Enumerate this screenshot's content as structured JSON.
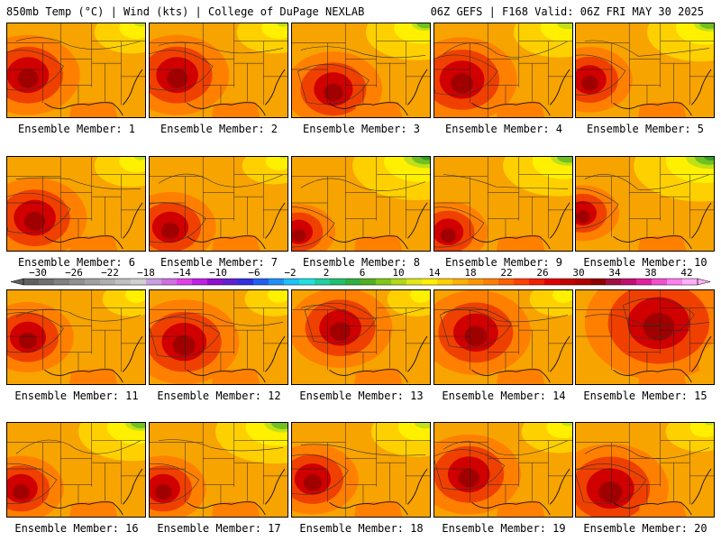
{
  "header": {
    "left": "850mb Temp (°C) | Wind (kts) | College of DuPage NEXLAB",
    "right": "06Z GEFS | F168 Valid: 06Z FRI MAY 30 2025"
  },
  "label_prefix": "Ensemble Member: ",
  "members": [
    1,
    2,
    3,
    4,
    5,
    6,
    7,
    8,
    9,
    10,
    11,
    12,
    13,
    14,
    15,
    16,
    17,
    18,
    19,
    20
  ],
  "colorbar": {
    "ticks": [
      "-30",
      "-26",
      "-22",
      "-18",
      "-14",
      "-10",
      "-6",
      "-2",
      "2",
      "6",
      "10",
      "14",
      "18",
      "22",
      "26",
      "30",
      "34",
      "38",
      "42"
    ],
    "colors": [
      "#606060",
      "#707070",
      "#808080",
      "#909090",
      "#a0a0a0",
      "#b0b0b0",
      "#c0c0c0",
      "#d0d0d0",
      "#c8a0e0",
      "#d070e0",
      "#e040e8",
      "#c020e0",
      "#9010d0",
      "#6020d0",
      "#3030e0",
      "#2060f0",
      "#2090f8",
      "#20c0f8",
      "#20e0e0",
      "#20d0a0",
      "#20c070",
      "#30b040",
      "#50b020",
      "#80c818",
      "#b0d818",
      "#e0e818",
      "#fff000",
      "#ffd000",
      "#ffb000",
      "#ff9800",
      "#ff8000",
      "#ff6000",
      "#ff4000",
      "#f02000",
      "#e00000",
      "#c80000",
      "#b00000",
      "#900000",
      "#a01040",
      "#c01070",
      "#e020a0",
      "#f050d0",
      "#ff80f0",
      "#ffb0f8"
    ]
  }
}
